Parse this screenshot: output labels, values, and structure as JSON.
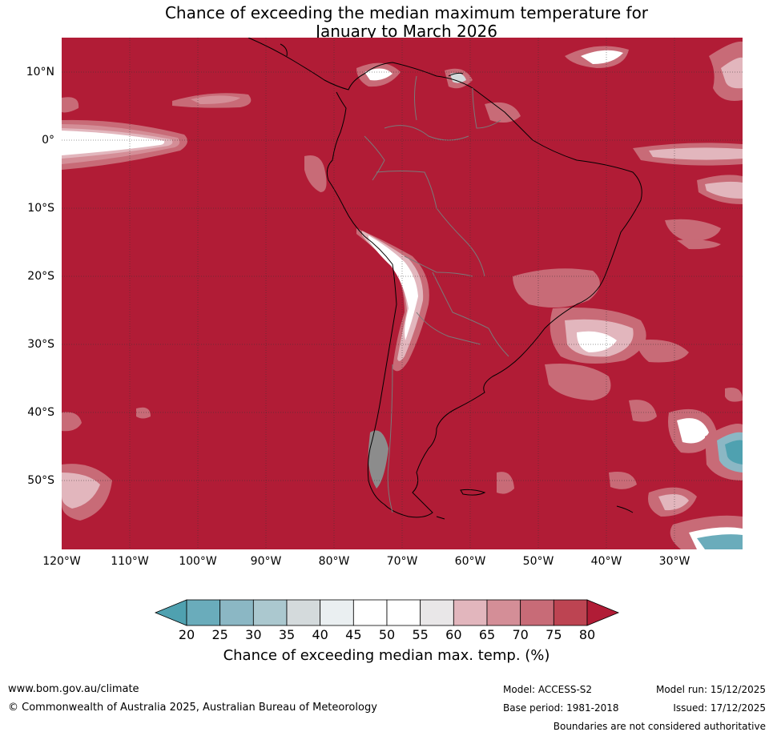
{
  "title": {
    "line1": "Chance of exceeding the median maximum temperature for",
    "line2": "January to March 2026"
  },
  "map": {
    "latitude_labels": [
      "10°N",
      "0°",
      "10°S",
      "20°S",
      "30°S",
      "40°S",
      "50°S"
    ],
    "longitude_labels": [
      "120°W",
      "110°W",
      "100°W",
      "90°W",
      "80°W",
      "70°W",
      "60°W",
      "50°W",
      "40°W",
      "30°W"
    ],
    "background_color": "#b11c36"
  },
  "colorbar": {
    "ticks": [
      "20",
      "25",
      "30",
      "35",
      "40",
      "45",
      "50",
      "55",
      "60",
      "65",
      "70",
      "75",
      "80"
    ],
    "colors": [
      "#4fa1b0",
      "#6aacbb",
      "#8bb7c4",
      "#abc8cf",
      "#d4dadc",
      "#eaeff1",
      "#ffffff",
      "#ffffff",
      "#e9e7e8",
      "#e2b6bd",
      "#d48e97",
      "#c86b77",
      "#bd4452",
      "#b11c36"
    ],
    "label": "Chance of exceeding median max. temp. (%)"
  },
  "footer": {
    "url": "www.bom.gov.au/climate",
    "copyright": "© Commonwealth of Australia 2025, Australian Bureau of Meteorology",
    "model": "Model: ACCESS-S2",
    "base_period": "Base period: 1981-2018",
    "model_run": "Model run: 15/12/2025",
    "issued": "Issued: 17/12/2025",
    "disclaimer": "Boundaries are not considered authoritative"
  }
}
